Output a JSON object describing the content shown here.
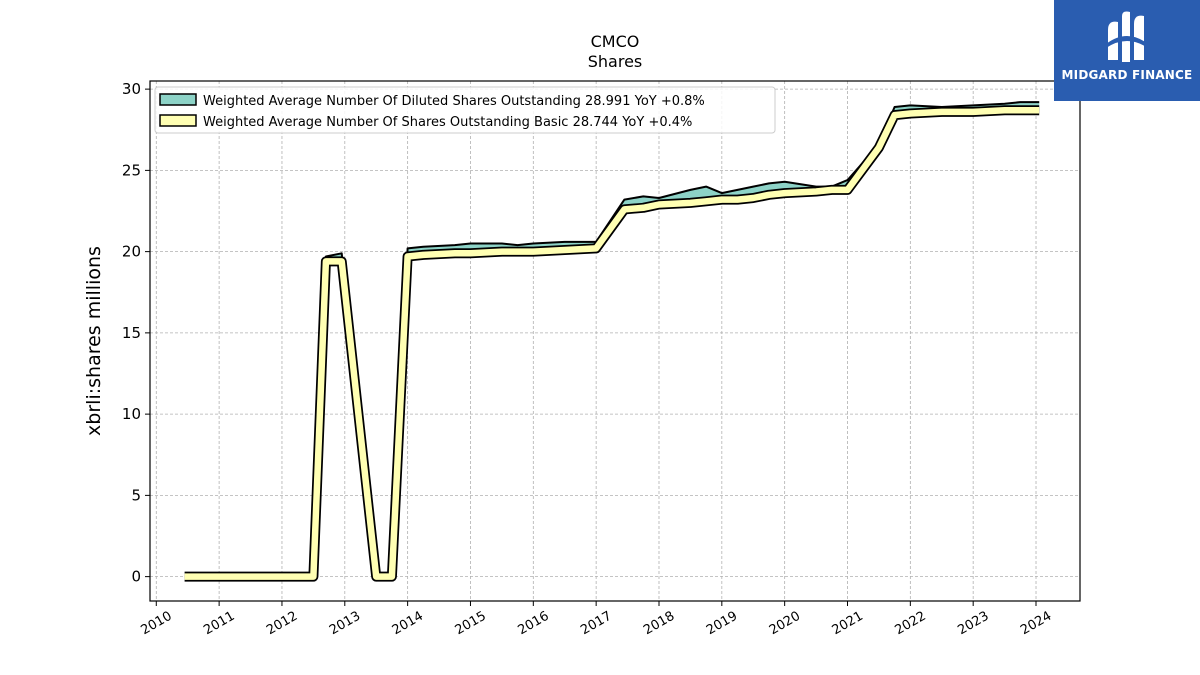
{
  "brand": {
    "name": "MIDGARD FINANCE",
    "icon": "midgard-logo-icon",
    "bg_color": "#2a5db0"
  },
  "chart_data": {
    "type": "area",
    "title": "CMCO",
    "subtitle": "Shares",
    "xlabel": "",
    "ylabel": "xbrli:shares millions",
    "ylim": [
      -1.5,
      30.5
    ],
    "xlim": [
      2009.9,
      2024.7
    ],
    "yticks": [
      0,
      5,
      10,
      15,
      20,
      25,
      30
    ],
    "xticks": [
      "2010",
      "2011",
      "2012",
      "2013",
      "2014",
      "2015",
      "2016",
      "2017",
      "2018",
      "2019",
      "2020",
      "2021",
      "2022",
      "2023",
      "2024"
    ],
    "grid": true,
    "legend_position": "top-left",
    "series": [
      {
        "name": "Weighted Average Number Of Diluted Shares Outstanding",
        "legend_label": "Weighted Average Number Of Diluted Shares Outstanding  28.991 YoY +0.8%",
        "color": "#8dd3c7",
        "x": [
          2010.45,
          2012.5,
          2012.7,
          2012.95,
          2013.5,
          2013.75,
          2014.0,
          2014.25,
          2014.75,
          2015.0,
          2015.5,
          2015.75,
          2016.0,
          2016.5,
          2017.0,
          2017.45,
          2017.75,
          2018.0,
          2018.5,
          2018.75,
          2019.0,
          2019.25,
          2019.5,
          2019.75,
          2020.0,
          2020.5,
          2020.75,
          2021.0,
          2021.5,
          2021.75,
          2022.0,
          2022.5,
          2023.0,
          2023.5,
          2023.75,
          2024.05
        ],
        "y": [
          0.0,
          0.0,
          19.7,
          19.9,
          0.0,
          0.0,
          20.2,
          20.3,
          20.4,
          20.5,
          20.5,
          20.4,
          20.5,
          20.6,
          20.6,
          23.2,
          23.4,
          23.3,
          23.8,
          24.0,
          23.6,
          23.8,
          24.0,
          24.2,
          24.3,
          24.0,
          24.0,
          24.4,
          26.6,
          28.9,
          29.0,
          28.9,
          29.0,
          29.1,
          29.2,
          29.2
        ]
      },
      {
        "name": "Weighted Average Number Of Shares Outstanding Basic",
        "legend_label": "Weighted Average Number Of Shares Outstanding Basic  28.744 YoY +0.4%",
        "color": "#ffffb3",
        "x": [
          2010.45,
          2012.5,
          2012.7,
          2012.95,
          2013.5,
          2013.75,
          2014.0,
          2014.25,
          2014.75,
          2015.0,
          2015.5,
          2015.75,
          2016.0,
          2016.5,
          2017.0,
          2017.45,
          2017.75,
          2018.0,
          2018.5,
          2018.75,
          2019.0,
          2019.25,
          2019.5,
          2019.75,
          2020.0,
          2020.5,
          2020.75,
          2021.0,
          2021.5,
          2021.75,
          2022.0,
          2022.5,
          2023.0,
          2023.5,
          2023.75,
          2024.05
        ],
        "y": [
          0.0,
          0.0,
          19.4,
          19.4,
          0.0,
          0.0,
          19.7,
          19.8,
          19.9,
          19.9,
          20.0,
          20.0,
          20.0,
          20.1,
          20.2,
          22.6,
          22.7,
          22.9,
          23.0,
          23.1,
          23.2,
          23.2,
          23.3,
          23.5,
          23.6,
          23.7,
          23.8,
          23.8,
          26.4,
          28.4,
          28.5,
          28.6,
          28.6,
          28.7,
          28.7,
          28.7
        ]
      }
    ]
  }
}
